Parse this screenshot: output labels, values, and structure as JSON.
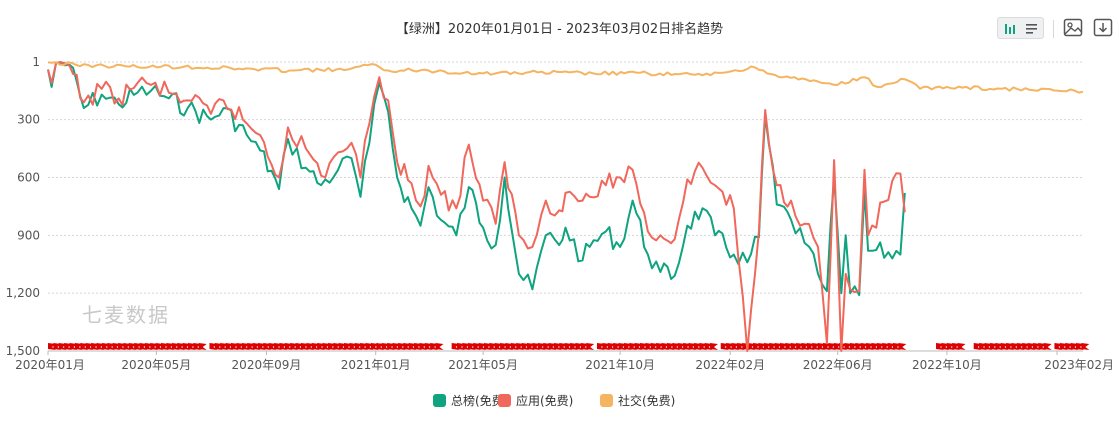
{
  "title": "【绿洲】2020年01月01日 - 2023年03月02日排名趋势",
  "watermark": "七麦数据",
  "toolbar": {
    "icons": [
      "bar-chart-icon",
      "list-icon",
      "image-icon",
      "download-icon"
    ],
    "accent": "#0fa37f"
  },
  "chart_data": {
    "type": "line",
    "title": "【绿洲】2020年01月01日 - 2023年03月02日排名趋势",
    "y_inverted": true,
    "ylim": [
      1,
      1500
    ],
    "yticks": [
      1,
      300,
      600,
      900,
      1200,
      1500
    ],
    "ytick_labels": [
      "1",
      "300",
      "600",
      "900",
      "1,200",
      "1,500"
    ],
    "xlim": [
      "2020-01-01",
      "2023-03-02"
    ],
    "xticks": [
      "2020-01-01",
      "2020-05-01",
      "2020-09-01",
      "2021-01-01",
      "2021-05-01",
      "2021-10-01",
      "2022-02-01",
      "2022-06-01",
      "2022-10-01",
      "2023-02-01"
    ],
    "xtick_labels": [
      "2020年01月",
      "2020年05月",
      "2020年09月",
      "2021年01月",
      "2021年05月",
      "2021年10月",
      "2022年02月",
      "2022年06月",
      "2022年10月",
      "2023年02月"
    ],
    "grid": true,
    "legend_position": "bottom-center",
    "series": [
      {
        "name": "总榜(免费)",
        "color": "#0fa37f",
        "points": [
          [
            "2020-01-01",
            40
          ],
          [
            "2020-01-05",
            130
          ],
          [
            "2020-01-10",
            5
          ],
          [
            "2020-01-25",
            15
          ],
          [
            "2020-02-10",
            240
          ],
          [
            "2020-03-01",
            170
          ],
          [
            "2020-03-20",
            220
          ],
          [
            "2020-04-10",
            160
          ],
          [
            "2020-04-25",
            150
          ],
          [
            "2020-05-15",
            190
          ],
          [
            "2020-06-05",
            240
          ],
          [
            "2020-07-01",
            300
          ],
          [
            "2020-07-15",
            240
          ],
          [
            "2020-08-10",
            380
          ],
          [
            "2020-08-25",
            460
          ],
          [
            "2020-09-15",
            660
          ],
          [
            "2020-09-25",
            400
          ],
          [
            "2020-10-15",
            550
          ],
          [
            "2020-11-01",
            640
          ],
          [
            "2020-11-20",
            560
          ],
          [
            "2020-12-05",
            500
          ],
          [
            "2020-12-15",
            700
          ],
          [
            "2020-12-25",
            420
          ],
          [
            "2021-01-05",
            110
          ],
          [
            "2021-01-15",
            260
          ],
          [
            "2021-01-25",
            600
          ],
          [
            "2021-02-10",
            760
          ],
          [
            "2021-02-20",
            850
          ],
          [
            "2021-03-01",
            650
          ],
          [
            "2021-03-15",
            820
          ],
          [
            "2021-04-01",
            900
          ],
          [
            "2021-04-15",
            650
          ],
          [
            "2021-05-01",
            860
          ],
          [
            "2021-05-15",
            950
          ],
          [
            "2021-05-25",
            600
          ],
          [
            "2021-06-10",
            1100
          ],
          [
            "2021-06-25",
            1180
          ],
          [
            "2021-07-10",
            900
          ],
          [
            "2021-07-25",
            950
          ],
          [
            "2021-08-01",
            860
          ],
          [
            "2021-08-20",
            1030
          ],
          [
            "2021-08-28",
            960
          ],
          [
            "2021-09-15",
            880
          ],
          [
            "2021-10-01",
            960
          ],
          [
            "2021-10-15",
            720
          ],
          [
            "2021-11-01",
            1000
          ],
          [
            "2021-11-15",
            1090
          ],
          [
            "2021-12-01",
            1110
          ],
          [
            "2021-12-15",
            850
          ],
          [
            "2022-01-01",
            760
          ],
          [
            "2022-01-15",
            900
          ],
          [
            "2022-02-05",
            1000
          ],
          [
            "2022-02-20",
            1040
          ],
          [
            "2022-03-05",
            910
          ],
          [
            "2022-03-12",
            280
          ],
          [
            "2022-03-25",
            740
          ],
          [
            "2022-04-10",
            820
          ],
          [
            "2022-04-25",
            940
          ],
          [
            "2022-05-10",
            1100
          ],
          [
            "2022-05-20",
            1190
          ],
          [
            "2022-05-28",
            600
          ],
          [
            "2022-06-05",
            1200
          ],
          [
            "2022-06-10",
            900
          ],
          [
            "2022-06-15",
            1200
          ],
          [
            "2022-06-25",
            1210
          ],
          [
            "2022-07-01",
            670
          ],
          [
            "2022-07-05",
            980
          ],
          [
            "2022-08-10",
            1000
          ],
          [
            "2022-08-15",
            680
          ]
        ]
      },
      {
        "name": "应用(免费)",
        "color": "#f0675c",
        "points": [
          [
            "2020-01-01",
            40
          ],
          [
            "2020-01-05",
            110
          ],
          [
            "2020-01-10",
            5
          ],
          [
            "2020-01-25",
            20
          ],
          [
            "2020-02-10",
            210
          ],
          [
            "2020-03-01",
            140
          ],
          [
            "2020-03-20",
            190
          ],
          [
            "2020-04-10",
            110
          ],
          [
            "2020-04-25",
            120
          ],
          [
            "2020-05-15",
            160
          ],
          [
            "2020-06-05",
            200
          ],
          [
            "2020-07-01",
            270
          ],
          [
            "2020-07-15",
            200
          ],
          [
            "2020-08-10",
            320
          ],
          [
            "2020-08-25",
            380
          ],
          [
            "2020-09-15",
            600
          ],
          [
            "2020-09-25",
            340
          ],
          [
            "2020-10-15",
            450
          ],
          [
            "2020-11-01",
            590
          ],
          [
            "2020-11-20",
            470
          ],
          [
            "2020-12-05",
            420
          ],
          [
            "2020-12-15",
            600
          ],
          [
            "2020-12-25",
            320
          ],
          [
            "2021-01-05",
            80
          ],
          [
            "2021-01-15",
            200
          ],
          [
            "2021-01-25",
            520
          ],
          [
            "2021-02-10",
            630
          ],
          [
            "2021-02-20",
            750
          ],
          [
            "2021-03-01",
            540
          ],
          [
            "2021-03-15",
            690
          ],
          [
            "2021-04-01",
            760
          ],
          [
            "2021-04-15",
            430
          ],
          [
            "2021-05-01",
            720
          ],
          [
            "2021-05-15",
            840
          ],
          [
            "2021-05-25",
            520
          ],
          [
            "2021-06-10",
            900
          ],
          [
            "2021-06-25",
            960
          ],
          [
            "2021-07-10",
            720
          ],
          [
            "2021-07-25",
            770
          ],
          [
            "2021-08-01",
            680
          ],
          [
            "2021-08-20",
            720
          ],
          [
            "2021-08-28",
            700
          ],
          [
            "2021-09-15",
            640
          ],
          [
            "2021-10-01",
            600
          ],
          [
            "2021-10-15",
            560
          ],
          [
            "2021-11-01",
            880
          ],
          [
            "2021-11-15",
            900
          ],
          [
            "2021-12-01",
            920
          ],
          [
            "2021-12-15",
            610
          ],
          [
            "2022-01-01",
            550
          ],
          [
            "2022-01-15",
            640
          ],
          [
            "2022-02-05",
            760
          ],
          [
            "2022-02-20",
            1500
          ],
          [
            "2022-03-05",
            880
          ],
          [
            "2022-03-12",
            250
          ],
          [
            "2022-03-25",
            640
          ],
          [
            "2022-04-10",
            720
          ],
          [
            "2022-04-25",
            840
          ],
          [
            "2022-05-10",
            960
          ],
          [
            "2022-05-20",
            1460
          ],
          [
            "2022-05-28",
            510
          ],
          [
            "2022-06-05",
            1500
          ],
          [
            "2022-06-10",
            1100
          ],
          [
            "2022-06-15",
            1180
          ],
          [
            "2022-06-25",
            1190
          ],
          [
            "2022-07-01",
            560
          ],
          [
            "2022-07-05",
            900
          ],
          [
            "2022-08-10",
            580
          ],
          [
            "2022-08-15",
            780
          ]
        ]
      },
      {
        "name": "社交(免费)",
        "color": "#f5b461",
        "points": [
          [
            "2020-01-01",
            3
          ],
          [
            "2020-02-01",
            15
          ],
          [
            "2020-04-01",
            25
          ],
          [
            "2020-06-01",
            25
          ],
          [
            "2020-08-01",
            35
          ],
          [
            "2020-10-01",
            45
          ],
          [
            "2020-12-01",
            40
          ],
          [
            "2021-01-01",
            15
          ],
          [
            "2021-01-15",
            45
          ],
          [
            "2021-03-01",
            45
          ],
          [
            "2021-05-01",
            60
          ],
          [
            "2021-07-01",
            55
          ],
          [
            "2021-09-01",
            60
          ],
          [
            "2021-11-01",
            60
          ],
          [
            "2022-01-01",
            70
          ],
          [
            "2022-03-01",
            30
          ],
          [
            "2022-04-01",
            80
          ],
          [
            "2022-05-01",
            100
          ],
          [
            "2022-06-01",
            120
          ],
          [
            "2022-07-01",
            80
          ],
          [
            "2022-07-15",
            130
          ],
          [
            "2022-08-15",
            90
          ],
          [
            "2022-09-01",
            140
          ],
          [
            "2022-10-01",
            130
          ],
          [
            "2022-12-01",
            140
          ],
          [
            "2023-01-01",
            145
          ],
          [
            "2023-03-02",
            155
          ]
        ]
      }
    ],
    "markers": {
      "color": "#dd0000",
      "shape": "flag",
      "y": 1500
    }
  }
}
